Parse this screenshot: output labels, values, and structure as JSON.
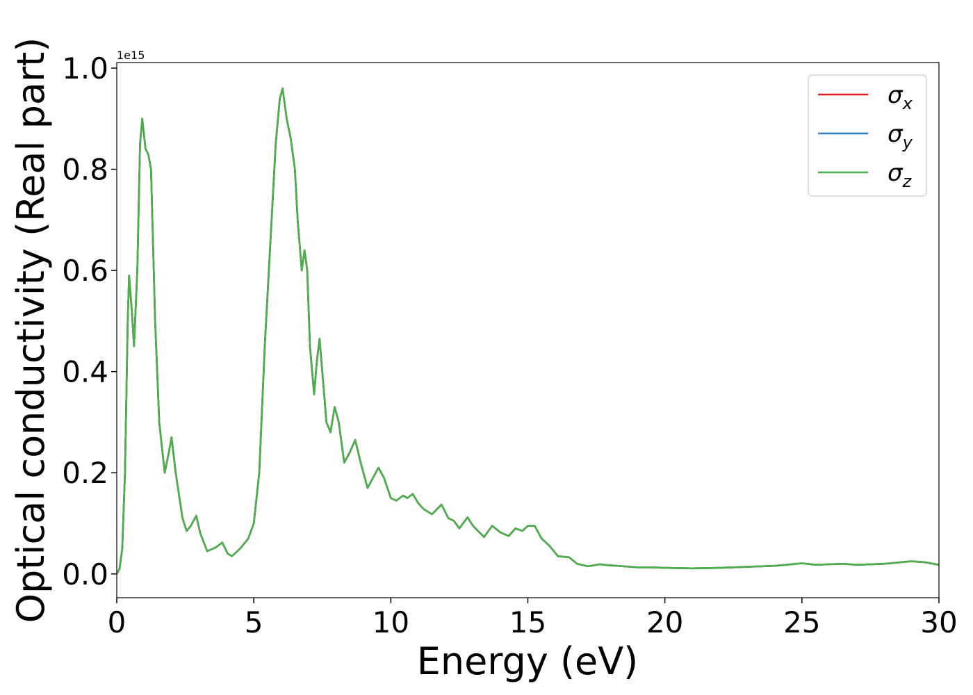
{
  "chart_data": {
    "type": "line",
    "xlabel": "Energy (eV)",
    "ylabel": "Optical conductivity (Real part)",
    "y_offset_label": "1e15",
    "xlim": [
      0,
      30
    ],
    "ylim": [
      -0.047,
      1.011
    ],
    "xticks": [
      0,
      5,
      10,
      15,
      20,
      25,
      30
    ],
    "yticks": [
      {
        "value": 0.0,
        "label": "0.0"
      },
      0.2,
      0.4,
      0.6,
      0.8,
      {
        "value": 1.0,
        "label": "1.0"
      }
    ],
    "legend": "upper right",
    "grid": false,
    "x": [
      0,
      0.1,
      0.2,
      0.3,
      0.4,
      0.45,
      0.55,
      0.63,
      0.75,
      0.85,
      0.93,
      1.05,
      1.15,
      1.25,
      1.4,
      1.55,
      1.75,
      1.9,
      2.0,
      2.15,
      2.4,
      2.55,
      2.7,
      2.9,
      3.05,
      3.3,
      3.6,
      3.85,
      4.05,
      4.2,
      4.5,
      4.8,
      5.0,
      5.2,
      5.4,
      5.6,
      5.8,
      5.95,
      6.05,
      6.2,
      6.35,
      6.5,
      6.6,
      6.75,
      6.85,
      6.95,
      7.05,
      7.2,
      7.3,
      7.4,
      7.5,
      7.65,
      7.8,
      7.95,
      8.1,
      8.3,
      8.5,
      8.7,
      8.9,
      9.15,
      9.35,
      9.55,
      9.75,
      10.0,
      10.2,
      10.45,
      10.6,
      10.8,
      11.0,
      11.2,
      11.5,
      11.85,
      12.1,
      12.3,
      12.5,
      12.8,
      13.0,
      13.4,
      13.7,
      14.0,
      14.3,
      14.55,
      14.8,
      15.0,
      15.25,
      15.5,
      15.8,
      16.1,
      16.5,
      16.8,
      17.2,
      17.6,
      18.0,
      18.5,
      19.0,
      19.5,
      20.0,
      21.0,
      22.0,
      23.0,
      24.0,
      25.0,
      25.5,
      26.5,
      27.0,
      28.0,
      29.0,
      29.5,
      30.0
    ],
    "series": [
      {
        "name": "σx",
        "color": "#e41a1c",
        "values": [
          0.0,
          0.01,
          0.05,
          0.2,
          0.5,
          0.59,
          0.52,
          0.45,
          0.6,
          0.85,
          0.9,
          0.84,
          0.83,
          0.8,
          0.5,
          0.3,
          0.2,
          0.24,
          0.27,
          0.2,
          0.11,
          0.085,
          0.095,
          0.115,
          0.08,
          0.045,
          0.052,
          0.062,
          0.04,
          0.035,
          0.05,
          0.07,
          0.1,
          0.2,
          0.45,
          0.65,
          0.85,
          0.94,
          0.96,
          0.9,
          0.86,
          0.8,
          0.7,
          0.6,
          0.64,
          0.6,
          0.45,
          0.355,
          0.42,
          0.465,
          0.4,
          0.3,
          0.28,
          0.33,
          0.3,
          0.22,
          0.24,
          0.265,
          0.22,
          0.17,
          0.19,
          0.21,
          0.19,
          0.15,
          0.145,
          0.155,
          0.15,
          0.158,
          0.14,
          0.128,
          0.118,
          0.137,
          0.11,
          0.105,
          0.09,
          0.112,
          0.095,
          0.073,
          0.095,
          0.082,
          0.075,
          0.09,
          0.085,
          0.095,
          0.095,
          0.07,
          0.055,
          0.035,
          0.033,
          0.02,
          0.015,
          0.019,
          0.017,
          0.015,
          0.013,
          0.013,
          0.012,
          0.011,
          0.012,
          0.014,
          0.016,
          0.021,
          0.018,
          0.02,
          0.018,
          0.02,
          0.025,
          0.023,
          0.018
        ]
      },
      {
        "name": "σy",
        "color": "#377eb8",
        "values": [
          0.0,
          0.01,
          0.05,
          0.2,
          0.5,
          0.59,
          0.52,
          0.45,
          0.6,
          0.85,
          0.9,
          0.84,
          0.83,
          0.8,
          0.5,
          0.3,
          0.2,
          0.24,
          0.27,
          0.2,
          0.11,
          0.085,
          0.095,
          0.115,
          0.08,
          0.045,
          0.052,
          0.062,
          0.04,
          0.035,
          0.05,
          0.07,
          0.1,
          0.2,
          0.45,
          0.65,
          0.85,
          0.94,
          0.96,
          0.9,
          0.86,
          0.8,
          0.7,
          0.6,
          0.64,
          0.6,
          0.45,
          0.355,
          0.42,
          0.465,
          0.4,
          0.3,
          0.28,
          0.33,
          0.3,
          0.22,
          0.24,
          0.265,
          0.22,
          0.17,
          0.19,
          0.21,
          0.19,
          0.15,
          0.145,
          0.155,
          0.15,
          0.158,
          0.14,
          0.128,
          0.118,
          0.137,
          0.11,
          0.105,
          0.09,
          0.112,
          0.095,
          0.073,
          0.095,
          0.082,
          0.075,
          0.09,
          0.085,
          0.095,
          0.095,
          0.07,
          0.055,
          0.035,
          0.033,
          0.02,
          0.015,
          0.019,
          0.017,
          0.015,
          0.013,
          0.013,
          0.012,
          0.011,
          0.012,
          0.014,
          0.016,
          0.021,
          0.018,
          0.02,
          0.018,
          0.02,
          0.025,
          0.023,
          0.018
        ]
      },
      {
        "name": "σz",
        "color": "#4daf4a",
        "values": [
          0.0,
          0.01,
          0.05,
          0.2,
          0.5,
          0.59,
          0.52,
          0.45,
          0.6,
          0.85,
          0.9,
          0.84,
          0.83,
          0.8,
          0.5,
          0.3,
          0.2,
          0.24,
          0.27,
          0.2,
          0.11,
          0.085,
          0.095,
          0.115,
          0.08,
          0.045,
          0.052,
          0.062,
          0.04,
          0.035,
          0.05,
          0.07,
          0.1,
          0.2,
          0.45,
          0.65,
          0.85,
          0.94,
          0.96,
          0.9,
          0.86,
          0.8,
          0.7,
          0.6,
          0.64,
          0.6,
          0.45,
          0.355,
          0.42,
          0.465,
          0.4,
          0.3,
          0.28,
          0.33,
          0.3,
          0.22,
          0.24,
          0.265,
          0.22,
          0.17,
          0.19,
          0.21,
          0.19,
          0.15,
          0.145,
          0.155,
          0.15,
          0.158,
          0.14,
          0.128,
          0.118,
          0.137,
          0.11,
          0.105,
          0.09,
          0.112,
          0.095,
          0.073,
          0.095,
          0.082,
          0.075,
          0.09,
          0.085,
          0.095,
          0.095,
          0.07,
          0.055,
          0.035,
          0.033,
          0.02,
          0.015,
          0.019,
          0.017,
          0.015,
          0.013,
          0.013,
          0.012,
          0.011,
          0.012,
          0.014,
          0.016,
          0.021,
          0.018,
          0.02,
          0.018,
          0.02,
          0.025,
          0.023,
          0.018
        ]
      }
    ]
  }
}
